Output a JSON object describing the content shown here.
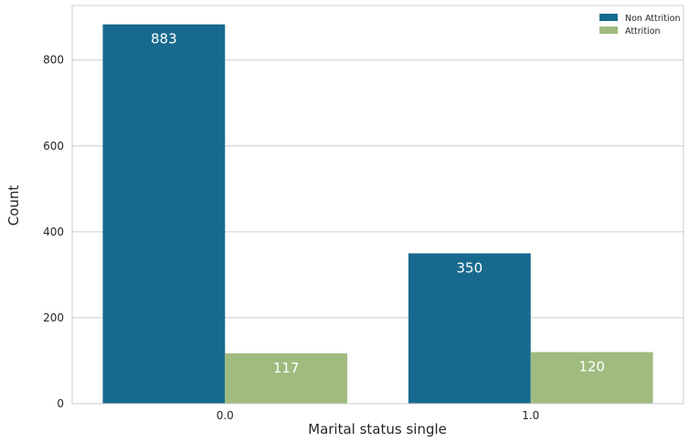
{
  "chart_data": {
    "type": "bar",
    "xlabel": "Marital status single",
    "ylabel": "Count",
    "categories": [
      "0.0",
      "1.0"
    ],
    "series": [
      {
        "name": "Non Attrition",
        "values": [
          883,
          350
        ],
        "color": "#176a8e"
      },
      {
        "name": "Attrition",
        "values": [
          117,
          120
        ],
        "color": "#a0bb7f"
      }
    ],
    "ylim": [
      0,
      927
    ],
    "yticks": [
      0,
      200,
      400,
      600,
      800
    ],
    "grid": "horizontal",
    "legend": "top-right"
  }
}
